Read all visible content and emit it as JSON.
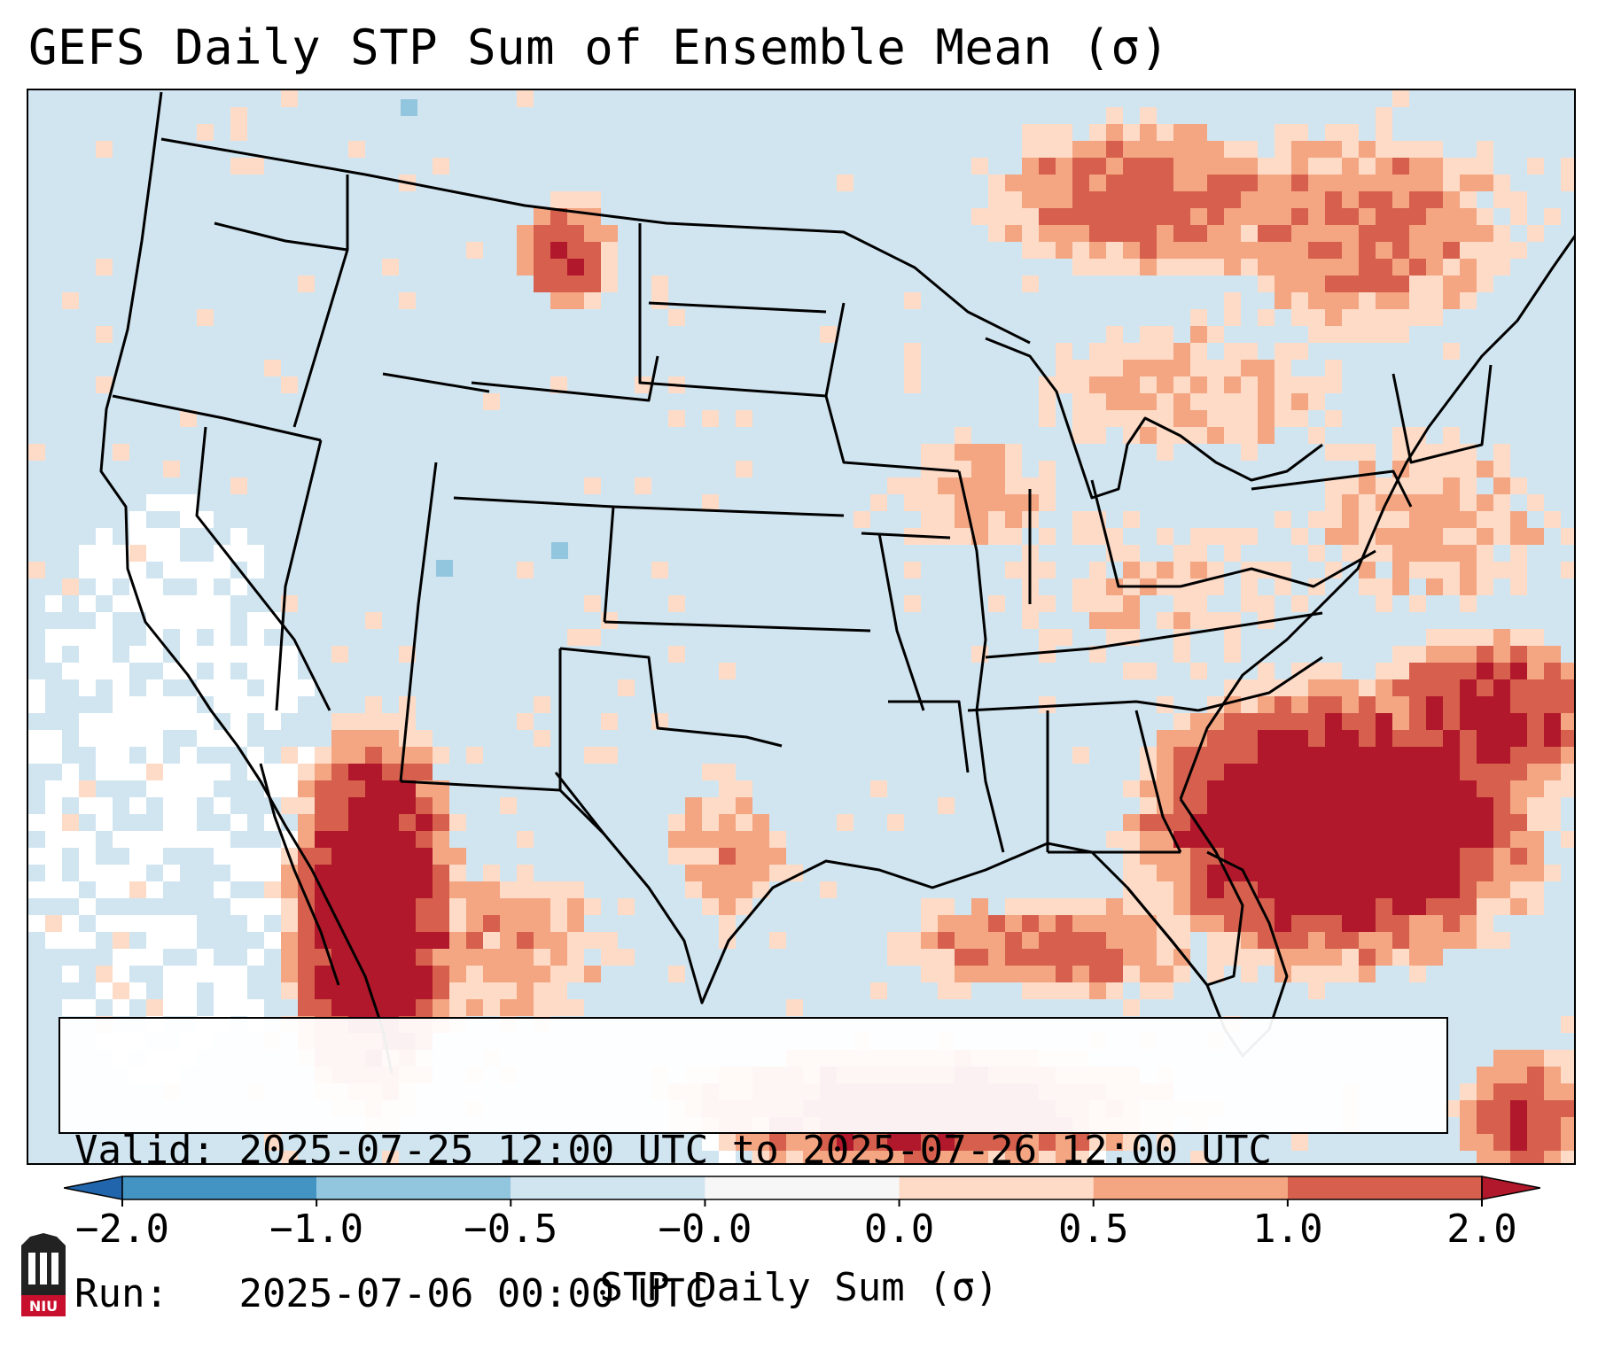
{
  "title": "GEFS Daily STP Sum of Ensemble Mean (σ)",
  "info": {
    "valid_label": "Valid:",
    "valid_value": "2025-07-25 12:00 UTC to 2025-07-26 12:00 UTC",
    "run_label": "Run:",
    "run_value": "2025-07-06 00:00 UTC"
  },
  "colorbar": {
    "title": "STP Daily Sum (σ)",
    "ticks": [
      "−2.0",
      "−1.0",
      "−0.5",
      "−0.0",
      "0.0",
      "0.5",
      "1.0",
      "2.0"
    ],
    "bin_colors": [
      "#4393c3",
      "#92c5de",
      "#d1e5f0",
      "#f7f7f7",
      "#fddbc7",
      "#f4a582",
      "#d6604d"
    ],
    "under_color": "#2166ac",
    "over_color": "#b2182b"
  },
  "map_colors": {
    "background": "#d1e5f0",
    "neutral": "#ffffff",
    "low_positive": "#fddbc7",
    "mid_positive": "#f4a582",
    "high_positive": "#d6604d",
    "max_positive": "#b2182b",
    "negative": "#92c5de",
    "outline": "#000000"
  },
  "logo": {
    "text": "NIU",
    "color": "#c8102e"
  }
}
